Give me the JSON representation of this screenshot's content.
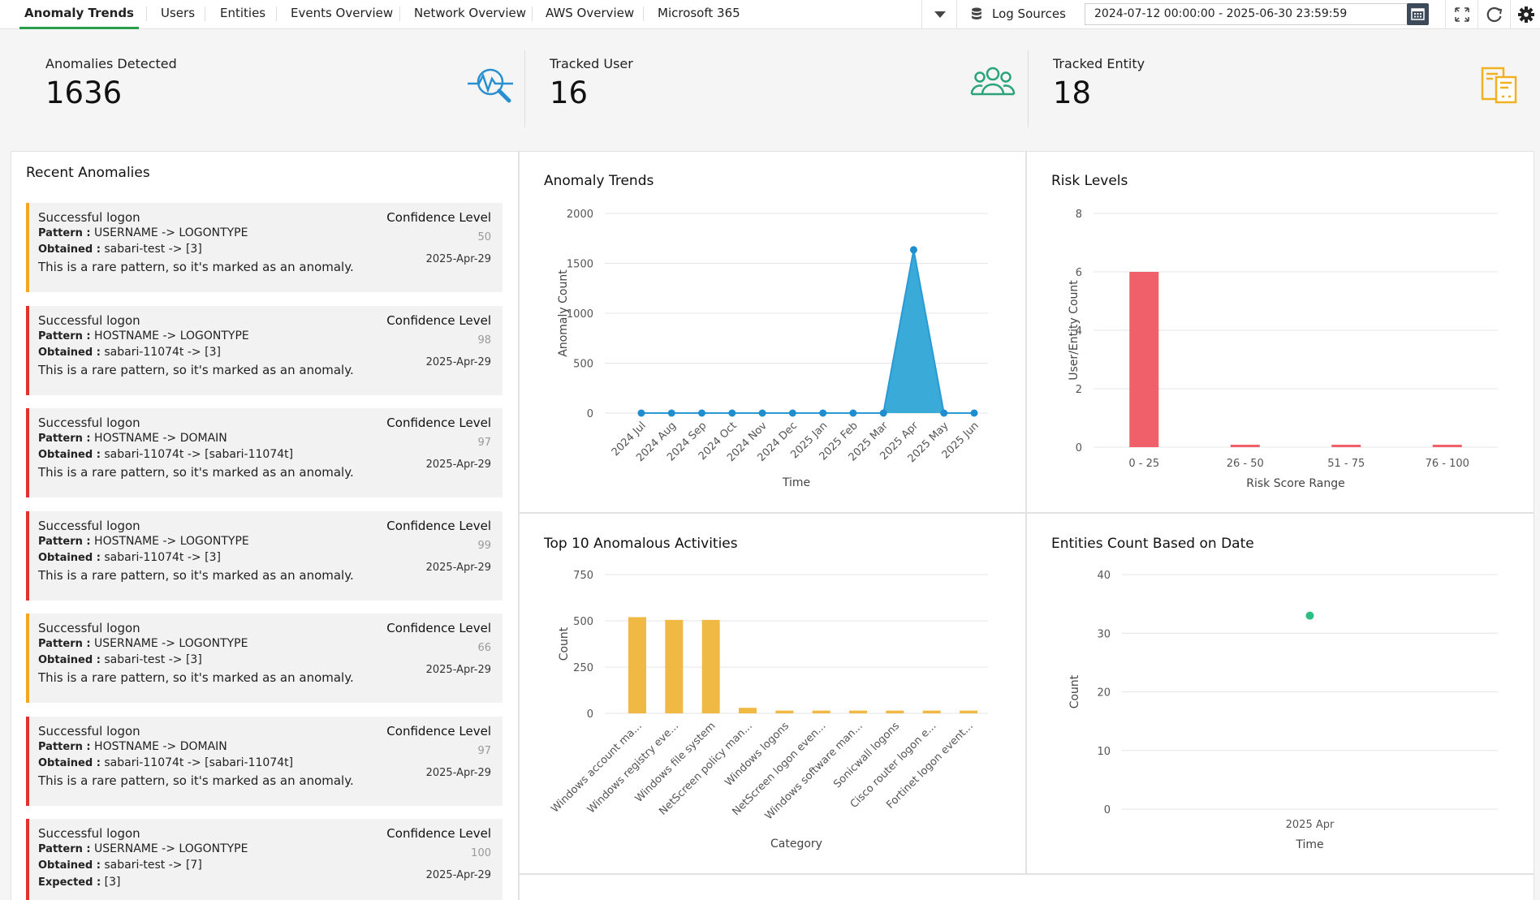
{
  "nav": {
    "tabs": [
      "Anomaly Trends",
      "Users",
      "Entities",
      "Events Overview",
      "Network Overview",
      "AWS Overview",
      "Microsoft 365"
    ],
    "active_tab": "Anomaly Trends",
    "log_sources_label": "Log Sources",
    "date_range": "2024-07-12 00:00:00 - 2025-06-30 23:59:59"
  },
  "kpis": [
    {
      "label": "Anomalies Detected",
      "value": "1636",
      "icon": "anomaly-search-icon",
      "color": "#2a8fd1"
    },
    {
      "label": "Tracked User",
      "value": "16",
      "icon": "users-group-icon",
      "color": "#2aa37a"
    },
    {
      "label": "Tracked Entity",
      "value": "18",
      "icon": "entity-documents-icon",
      "color": "#f0b020"
    }
  ],
  "recent": {
    "title": "Recent Anomalies",
    "confidence_label": "Confidence Level",
    "items": [
      {
        "title": "Successful logon",
        "pattern_key": "Pattern :",
        "pattern": "USERNAME -> LOGONTYPE",
        "obtained_key": "Obtained :",
        "obtained": "sabari-test -> [3]",
        "note": "This is a rare pattern, so it's marked as an anomaly.",
        "confidence": "50",
        "date": "2025-Apr-29",
        "severity": "medium"
      },
      {
        "title": "Successful logon",
        "pattern_key": "Pattern :",
        "pattern": "HOSTNAME -> LOGONTYPE",
        "obtained_key": "Obtained :",
        "obtained": "sabari-11074t -> [3]",
        "note": "This is a rare pattern, so it's marked as an anomaly.",
        "confidence": "98",
        "date": "2025-Apr-29",
        "severity": "high"
      },
      {
        "title": "Successful logon",
        "pattern_key": "Pattern :",
        "pattern": "HOSTNAME -> DOMAIN",
        "obtained_key": "Obtained :",
        "obtained": "sabari-11074t -> [sabari-11074t]",
        "note": "This is a rare pattern, so it's marked as an anomaly.",
        "confidence": "97",
        "date": "2025-Apr-29",
        "severity": "high"
      },
      {
        "title": "Successful logon",
        "pattern_key": "Pattern :",
        "pattern": "HOSTNAME -> LOGONTYPE",
        "obtained_key": "Obtained :",
        "obtained": "sabari-11074t -> [3]",
        "note": "This is a rare pattern, so it's marked as an anomaly.",
        "confidence": "99",
        "date": "2025-Apr-29",
        "severity": "high"
      },
      {
        "title": "Successful logon",
        "pattern_key": "Pattern :",
        "pattern": "USERNAME -> LOGONTYPE",
        "obtained_key": "Obtained :",
        "obtained": "sabari-test -> [3]",
        "note": "This is a rare pattern, so it's marked as an anomaly.",
        "confidence": "66",
        "date": "2025-Apr-29",
        "severity": "medium"
      },
      {
        "title": "Successful logon",
        "pattern_key": "Pattern :",
        "pattern": "HOSTNAME -> DOMAIN",
        "obtained_key": "Obtained :",
        "obtained": "sabari-11074t -> [sabari-11074t]",
        "note": "This is a rare pattern, so it's marked as an anomaly.",
        "confidence": "97",
        "date": "2025-Apr-29",
        "severity": "high"
      },
      {
        "title": "Successful logon",
        "pattern_key": "Pattern :",
        "pattern": "USERNAME -> LOGONTYPE",
        "obtained_key": "Obtained :",
        "obtained": "sabari-test -> [7]",
        "note": "",
        "expected_key": "Expected :",
        "expected": "[3]",
        "confidence": "100",
        "date": "2025-Apr-29",
        "severity": "high"
      }
    ]
  },
  "colors": {
    "high": "#e5312e",
    "medium": "#f4a623",
    "tab_accent": "#2a9d4a"
  },
  "chart_data": [
    {
      "title": "Anomaly Trends",
      "type": "area",
      "xlabel": "Time",
      "ylabel": "Anomaly Count",
      "categories": [
        "2024 Jul",
        "2024 Aug",
        "2024 Sep",
        "2024 Oct",
        "2024 Nov",
        "2024 Dec",
        "2025 Jan",
        "2025 Feb",
        "2025 Mar",
        "2025 Apr",
        "2025 May",
        "2025 Jun"
      ],
      "values": [
        0,
        0,
        0,
        0,
        0,
        0,
        0,
        0,
        0,
        1636,
        0,
        0
      ],
      "yticks": [
        0,
        500,
        1000,
        1500,
        2000
      ],
      "ylim": [
        0,
        2000
      ],
      "color": "#2a9ad5",
      "fill": "#3aaad8"
    },
    {
      "title": "Risk Levels",
      "type": "bar",
      "xlabel": "Risk Score Range",
      "ylabel": "User/Entity Count",
      "categories": [
        "0 - 25",
        "26 - 50",
        "51 - 75",
        "76 - 100"
      ],
      "values": [
        6,
        0,
        0,
        0
      ],
      "yticks": [
        0,
        2,
        4,
        6,
        8
      ],
      "ylim": [
        0,
        8
      ],
      "color": "#f0606a"
    },
    {
      "title": "Top 10 Anomalous Activities",
      "type": "bar",
      "xlabel": "Category",
      "ylabel": "Count",
      "categories": [
        "Windows account ma...",
        "Windows registry eve...",
        "Windows file system",
        "NetScreen policy man...",
        "Windows logons",
        "NetScreen logon even...",
        "Windows software man...",
        "Sonicwall logons",
        "Cisco router logon e...",
        "Fortinet logon event..."
      ],
      "values": [
        520,
        505,
        505,
        30,
        15,
        15,
        15,
        15,
        15,
        15
      ],
      "yticks": [
        0,
        250,
        500,
        750
      ],
      "ylim": [
        0,
        750
      ],
      "color": "#f0b944"
    },
    {
      "title": "Entities Count Based on Date",
      "type": "scatter",
      "xlabel": "Time",
      "ylabel": "Count",
      "categories": [
        "2025 Apr"
      ],
      "values": [
        33
      ],
      "yticks": [
        0,
        10,
        20,
        30,
        40
      ],
      "ylim": [
        0,
        40
      ],
      "color": "#2bbf84"
    }
  ]
}
